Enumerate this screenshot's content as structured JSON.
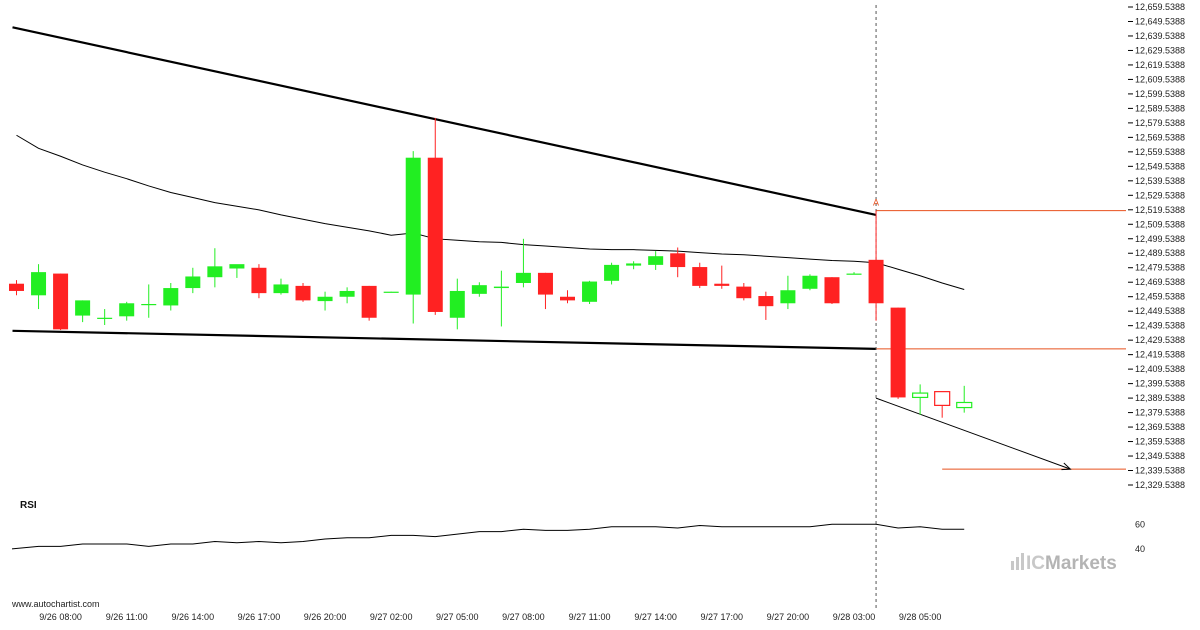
{
  "chart_data": {
    "type": "candlestick",
    "source": "www.autochartist.com",
    "brand": {
      "ic": "IC",
      "markets": "Markets",
      "mark_color": "#c8c8c8",
      "text_color": "#b4b4b4"
    },
    "colors": {
      "up": "#22ee22",
      "down": "#ff2222",
      "support_resistance": "#000000",
      "ma_line": "#000000",
      "target_line": "#e8501e",
      "projection": "#000000",
      "rsi_line": "#000000"
    },
    "y_axis": {
      "min": 12329.5388,
      "max": 12659.5388,
      "step": 10,
      "tick_format": "0,000.0000"
    },
    "x_axis": {
      "labels": [
        "9/26 08:00",
        "9/26 11:00",
        "9/26 14:00",
        "9/26 17:00",
        "9/26 20:00",
        "9/27 02:00",
        "9/27 05:00",
        "9/27 08:00",
        "9/27 11:00",
        "9/27 14:00",
        "9/27 17:00",
        "9/27 20:00",
        "9/28 03:00",
        "9/28 05:00"
      ],
      "label_index": [
        2,
        5,
        8,
        11,
        14,
        17,
        20,
        23,
        26,
        29,
        32,
        35,
        38,
        41
      ]
    },
    "candles": [
      {
        "o": 12468.5,
        "h": 12471.0,
        "l": 12460.5,
        "c": 12463.5
      },
      {
        "o": 12460.5,
        "h": 12482.0,
        "l": 12451.0,
        "c": 12476.5
      },
      {
        "o": 12475.5,
        "h": 12475.5,
        "l": 12436.5,
        "c": 12437.0
      },
      {
        "o": 12446.5,
        "h": 12457.0,
        "l": 12442.0,
        "c": 12457.0
      },
      {
        "o": 12445.0,
        "h": 12451.0,
        "l": 12440.0,
        "c": 12445.0
      },
      {
        "o": 12446.0,
        "h": 12456.0,
        "l": 12443.0,
        "c": 12455.0
      },
      {
        "o": 12454.5,
        "h": 12468.0,
        "l": 12445.0,
        "c": 12454.5
      },
      {
        "o": 12453.5,
        "h": 12469.0,
        "l": 12450.0,
        "c": 12465.5
      },
      {
        "o": 12465.5,
        "h": 12479.5,
        "l": 12462.0,
        "c": 12473.5
      },
      {
        "o": 12473.0,
        "h": 12493.0,
        "l": 12466.0,
        "c": 12480.5
      },
      {
        "o": 12479.0,
        "h": 12480.0,
        "l": 12472.5,
        "c": 12482.0
      },
      {
        "o": 12479.5,
        "h": 12482.0,
        "l": 12458.5,
        "c": 12462.0
      },
      {
        "o": 12462.0,
        "h": 12472.0,
        "l": 12461.0,
        "c": 12468.0
      },
      {
        "o": 12467.0,
        "h": 12469.0,
        "l": 12456.0,
        "c": 12457.0
      },
      {
        "o": 12456.5,
        "h": 12463.0,
        "l": 12450.0,
        "c": 12459.5
      },
      {
        "o": 12459.5,
        "h": 12466.0,
        "l": 12455.0,
        "c": 12463.5
      },
      {
        "o": 12467.0,
        "h": 12467.0,
        "l": 12443.0,
        "c": 12445.0
      },
      {
        "o": 12463.0,
        "h": 12463.0,
        "l": 12462.5,
        "c": 12463.0
      },
      {
        "o": 12461.0,
        "h": 12560.0,
        "l": 12441.0,
        "c": 12555.5
      },
      {
        "o": 12555.5,
        "h": 12583.0,
        "l": 12447.0,
        "c": 12449.0
      },
      {
        "o": 12445.0,
        "h": 12472.0,
        "l": 12437.0,
        "c": 12463.5
      },
      {
        "o": 12461.5,
        "h": 12469.5,
        "l": 12459.5,
        "c": 12467.5
      },
      {
        "o": 12465.5,
        "h": 12477.5,
        "l": 12439.0,
        "c": 12466.5
      },
      {
        "o": 12469.0,
        "h": 12499.5,
        "l": 12466.0,
        "c": 12476.0
      },
      {
        "o": 12476.0,
        "h": 12476.0,
        "l": 12451.0,
        "c": 12461.0
      },
      {
        "o": 12459.5,
        "h": 12464.0,
        "l": 12455.0,
        "c": 12457.0
      },
      {
        "o": 12456.0,
        "h": 12470.5,
        "l": 12454.5,
        "c": 12470.0
      },
      {
        "o": 12470.5,
        "h": 12483.0,
        "l": 12468.0,
        "c": 12481.5
      },
      {
        "o": 12481.0,
        "h": 12484.0,
        "l": 12478.5,
        "c": 12482.5
      },
      {
        "o": 12481.5,
        "h": 12491.0,
        "l": 12478.0,
        "c": 12487.5
      },
      {
        "o": 12489.5,
        "h": 12493.5,
        "l": 12473.0,
        "c": 12480.0
      },
      {
        "o": 12480.0,
        "h": 12483.0,
        "l": 12465.5,
        "c": 12467.0
      },
      {
        "o": 12468.5,
        "h": 12481.0,
        "l": 12465.0,
        "c": 12467.0
      },
      {
        "o": 12466.5,
        "h": 12469.0,
        "l": 12457.0,
        "c": 12458.5
      },
      {
        "o": 12460.0,
        "h": 12463.0,
        "l": 12443.5,
        "c": 12453.0
      },
      {
        "o": 12455.0,
        "h": 12474.0,
        "l": 12451.0,
        "c": 12464.0
      },
      {
        "o": 12465.0,
        "h": 12475.0,
        "l": 12464.0,
        "c": 12474.0
      },
      {
        "o": 12473.0,
        "h": 12473.0,
        "l": 12454.5,
        "c": 12455.0
      },
      {
        "o": 12475.5,
        "h": 12476.5,
        "l": 12475.0,
        "c": 12475.5
      },
      {
        "o": 12485.0,
        "h": 12519.0,
        "l": 12443.0,
        "c": 12455.0
      },
      {
        "o": 12452.0,
        "h": 12452.0,
        "l": 12389.0,
        "c": 12390.0
      },
      {
        "o": 12390.0,
        "h": 12399.0,
        "l": 12378.0,
        "c": 12393.0
      },
      {
        "o": 12394.0,
        "h": 12394.0,
        "l": 12376.0,
        "c": 12384.5
      },
      {
        "o": 12383.0,
        "h": 12398.0,
        "l": 12379.5,
        "c": 12386.5
      }
    ],
    "moving_average": [
      12571.0,
      12562.0,
      12556.5,
      12550.5,
      12545.5,
      12541.0,
      12536.0,
      12531.5,
      12528.0,
      12524.5,
      12522.0,
      12519.5,
      12516.0,
      12513.0,
      12510.0,
      12507.5,
      12505.0,
      12502.0,
      12503.5,
      12499.5,
      12498.5,
      12497.5,
      12497.0,
      12495.5,
      12494.5,
      12493.5,
      12492.5,
      12492.0,
      12492.0,
      12491.5,
      12491.0,
      12490.0,
      12489.0,
      12488.5,
      12487.5,
      12486.5,
      12485.5,
      12484.5,
      12484.0,
      12483.0,
      12478.5,
      12474.0,
      12469.0,
      12464.5
    ],
    "resistance_line": {
      "from": {
        "index": 0,
        "value": 12645.5
      },
      "to": {
        "index": 39,
        "value": 12516.0
      }
    },
    "support_line": {
      "from": {
        "index": 0,
        "value": 12436.0
      },
      "to": {
        "index": 39,
        "value": 12423.5
      }
    },
    "target_projection": {
      "from": {
        "index": 39,
        "value": 12389.5
      },
      "to": {
        "index": 48,
        "value": 12340.5
      }
    },
    "point_lines": [
      {
        "value": 12519.0,
        "from_index": 39
      },
      {
        "value": 12423.5,
        "from_index": 39
      },
      {
        "value": 12340.5,
        "from_index": 42
      }
    ],
    "point_label": {
      "text": "A",
      "index": 39,
      "value": 12519.0
    },
    "current_time_index": 39,
    "rsi": {
      "label": "RSI",
      "min": 35,
      "max": 70,
      "ticks": [
        40,
        60
      ],
      "values": [
        40,
        42,
        42,
        44,
        44,
        44,
        42,
        44,
        44,
        46,
        45,
        46,
        45,
        46,
        48,
        49,
        49,
        51,
        51,
        50,
        52,
        54,
        54,
        56,
        55,
        55,
        56,
        58,
        58,
        58,
        57,
        59,
        58,
        58,
        58,
        58,
        58,
        60,
        60,
        60,
        57,
        58,
        56,
        56
      ]
    }
  }
}
